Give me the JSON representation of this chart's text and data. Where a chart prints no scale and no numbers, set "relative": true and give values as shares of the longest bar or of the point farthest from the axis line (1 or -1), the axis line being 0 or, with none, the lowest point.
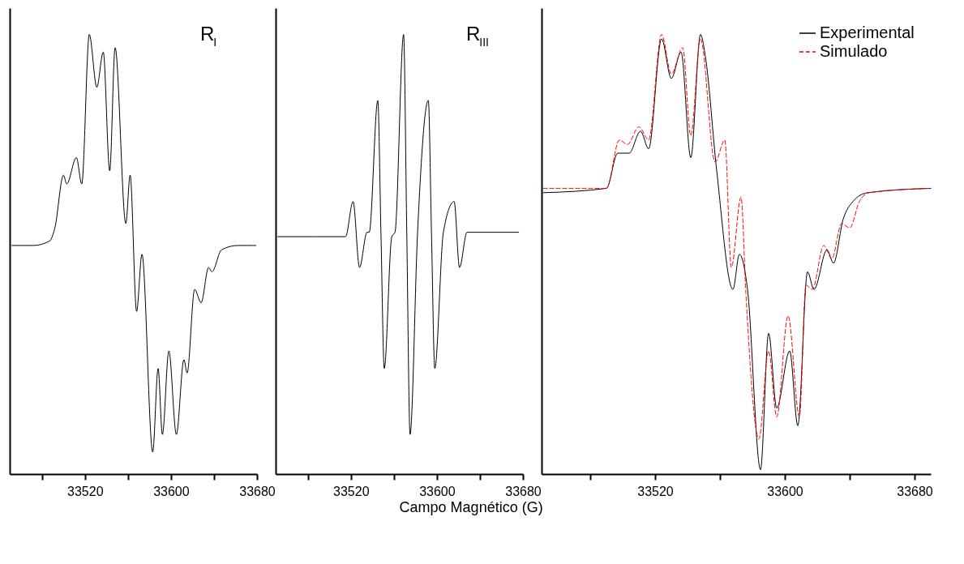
{
  "chart_data": [
    {
      "type": "line",
      "relative": true,
      "xlim": [
        33450,
        33680
      ],
      "xticks": [
        {
          "value": 33480,
          "label": null
        },
        33520,
        {
          "value": 33560,
          "label": null
        },
        33600,
        {
          "value": 33640,
          "label": null
        },
        33680
      ],
      "annotations": [
        "R$_{I}$"
      ],
      "series": [
        {
          "color": "#000000",
          "x": [
            33452,
            33472,
            33487,
            33492,
            33500,
            33503,
            33512,
            33517,
            33524,
            33531,
            33537,
            33543,
            33548,
            33558,
            33562,
            33568,
            33573,
            33583,
            33588,
            33592,
            33598,
            33605,
            33612,
            33615,
            33622,
            33628,
            33635,
            33638,
            33647,
            33662,
            33679
          ],
          "values": [
            0.52,
            0.52,
            0.53,
            0.56,
            0.68,
            0.66,
            0.72,
            0.66,
            1.0,
            0.88,
            0.96,
            0.69,
            0.97,
            0.57,
            0.68,
            0.37,
            0.5,
            0.05,
            0.24,
            0.09,
            0.28,
            0.09,
            0.26,
            0.23,
            0.42,
            0.39,
            0.47,
            0.46,
            0.51,
            0.52,
            0.52
          ]
        }
      ]
    },
    {
      "type": "line",
      "relative": true,
      "xlim": [
        33450,
        33680
      ],
      "xticks": [
        {
          "value": 33480,
          "label": null
        },
        33520,
        {
          "value": 33560,
          "label": null
        },
        33600,
        {
          "value": 33640,
          "label": null
        },
        33680
      ],
      "xlabel": "Campo Magnético (G)",
      "annotations": [
        "R$_{III}$"
      ],
      "series": [
        {
          "color": "#000000",
          "x": [
            33452,
            33515,
            33522,
            33528,
            33535,
            33537,
            33545,
            33548,
            33551,
            33558,
            33561,
            33569,
            33572,
            33575,
            33582,
            33592,
            33595,
            33598,
            33606,
            33616,
            33621,
            33628,
            33676
          ],
          "values": [
            0.54,
            0.54,
            0.62,
            0.47,
            0.55,
            0.55,
            0.85,
            0.54,
            0.24,
            0.54,
            0.55,
            1.0,
            0.54,
            0.09,
            0.55,
            0.85,
            0.54,
            0.24,
            0.55,
            0.62,
            0.47,
            0.55,
            0.55
          ]
        }
      ]
    },
    {
      "type": "line",
      "relative": true,
      "xlim": [
        33450,
        33690
      ],
      "xticks": [
        {
          "value": 33480,
          "label": null
        },
        33520,
        {
          "value": 33560,
          "label": null
        },
        33600,
        {
          "value": 33640,
          "label": null
        },
        33680
      ],
      "legend": "top right",
      "series": [
        {
          "name": "Experimental",
          "color": "#000000",
          "line_style": "solid",
          "x": [
            33451,
            33490,
            33497,
            33504,
            33511,
            33516,
            33524,
            33530,
            33536,
            33542,
            33548,
            33551,
            33558,
            33568,
            33572,
            33577,
            33585,
            33590,
            33595,
            33603,
            33608,
            33614,
            33618,
            33626,
            33630,
            33636,
            33642,
            33651,
            33690
          ],
          "values": [
            0.64,
            0.65,
            0.73,
            0.73,
            0.78,
            0.74,
            0.99,
            0.9,
            0.96,
            0.72,
            1.0,
            0.95,
            0.69,
            0.42,
            0.5,
            0.42,
            0.01,
            0.32,
            0.15,
            0.28,
            0.11,
            0.46,
            0.42,
            0.51,
            0.48,
            0.58,
            0.62,
            0.64,
            0.65
          ]
        },
        {
          "name": "Simulado",
          "color": "#ff0000",
          "line_style": "dashed",
          "x": [
            33451,
            33490,
            33498,
            33503,
            33510,
            33516,
            33524,
            33530,
            33537,
            33542,
            33548,
            33557,
            33563,
            33567,
            33573,
            33576,
            33584,
            33590,
            33595,
            33602,
            33609,
            33613,
            33617,
            33624,
            33629,
            33635,
            33640,
            33646,
            33652,
            33690
          ],
          "values": [
            0.65,
            0.65,
            0.76,
            0.75,
            0.79,
            0.76,
            1.0,
            0.91,
            0.97,
            0.77,
            0.99,
            0.71,
            0.76,
            0.47,
            0.63,
            0.41,
            0.08,
            0.28,
            0.13,
            0.36,
            0.13,
            0.43,
            0.42,
            0.52,
            0.49,
            0.57,
            0.56,
            0.62,
            0.64,
            0.65
          ]
        }
      ]
    }
  ]
}
